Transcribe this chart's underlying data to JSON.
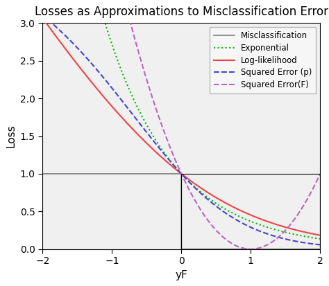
{
  "title": "Losses as Approximations to Misclassification Error",
  "xlabel": "yF",
  "ylabel": "Loss",
  "xlim": [
    -2,
    2
  ],
  "ylim": [
    0,
    3.0
  ],
  "yticks": [
    0.0,
    0.5,
    1.0,
    1.5,
    2.0,
    2.5,
    3.0
  ],
  "xticks": [
    -2,
    -1,
    0,
    1,
    2
  ],
  "background_color": "#ffffff",
  "plot_bg_color": "#f0f0f0",
  "legend_entries": [
    {
      "label": "Misclassification",
      "color": "#7f7f7f",
      "linestyle": "solid",
      "linewidth": 1.2
    },
    {
      "label": "Exponential",
      "color": "#00bb00",
      "linestyle": "dotted",
      "linewidth": 1.5
    },
    {
      "label": "Log-likelihood",
      "color": "#ee4444",
      "linestyle": "solid",
      "linewidth": 1.5
    },
    {
      "label": "Squared Error (p)",
      "color": "#4444cc",
      "linestyle": "dashed",
      "linewidth": 1.5
    },
    {
      "label": "Squared Error(F)",
      "color": "#bb66bb",
      "linestyle": "dashed",
      "linewidth": 1.5
    }
  ],
  "title_fontsize": 12,
  "axis_label_fontsize": 11,
  "tick_fontsize": 10,
  "legend_fontsize": 8.5
}
